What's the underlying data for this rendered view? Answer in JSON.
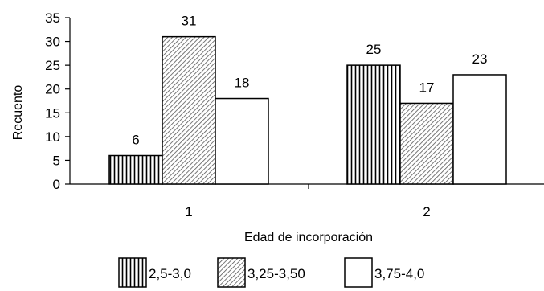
{
  "chart_data": {
    "type": "bar",
    "categories": [
      "1",
      "2"
    ],
    "series": [
      {
        "name": "2,5-3,0",
        "pattern": "vertical-lines",
        "values": [
          6,
          25
        ]
      },
      {
        "name": "3,25-3,50",
        "pattern": "diagonal-hatch",
        "values": [
          31,
          17
        ]
      },
      {
        "name": "3,75-4,0",
        "pattern": "solid-white",
        "values": [
          18,
          23
        ]
      }
    ],
    "data_labels": [
      [
        "6",
        "25"
      ],
      [
        "31",
        "17"
      ],
      [
        "18",
        "23"
      ]
    ],
    "xlabel": "Edad de incorporación",
    "ylabel": "Recuento",
    "ylim": [
      0,
      35
    ],
    "yticks": [
      "0",
      "5",
      "10",
      "15",
      "20",
      "25",
      "30",
      "35"
    ],
    "grid": false,
    "legend_position": "bottom"
  }
}
